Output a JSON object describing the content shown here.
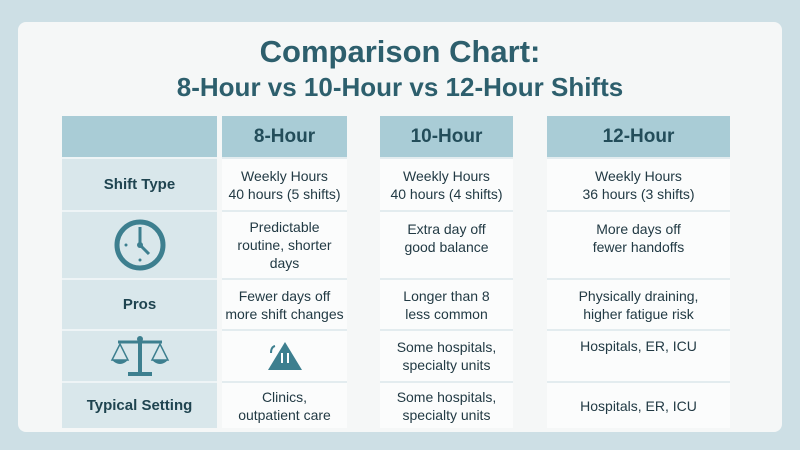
{
  "title_line1": "Comparison Chart:",
  "title_line2": "8-Hour vs 10-Hour vs 12-Hour Shifts",
  "row_labels": [
    "Shift Type",
    "",
    "Pros",
    "",
    "Typical Setting"
  ],
  "row_icons": [
    "",
    "clock-icon",
    "",
    "scales-icon",
    ""
  ],
  "columns": [
    {
      "header": "8-Hour",
      "cells": [
        "Weekly Hours\n40 hours (5 shifts)",
        "Predictable\nroutine, shorter\ndays",
        "Fewer days off\nmore shift changes",
        "",
        "Clinics,\noutpatient care"
      ],
      "icon_row4": "warning-icon"
    },
    {
      "header": "10-Hour",
      "cells": [
        "Weekly Hours\n40 hours (4 shifts)",
        "Extra day off\ngood balance",
        "Longer than 8\nless common",
        "Some hospitals,\nspecialty units",
        "Some hospitals,\nspecialty units"
      ]
    },
    {
      "header": "12-Hour",
      "cells": [
        "Weekly Hours\n36 hours (3 shifts)",
        "More days off\nfewer handoffs",
        "Physically draining,\nhigher fatigue risk",
        "Hospitals, ER, ICU",
        "Hospitals, ER, ICU"
      ]
    }
  ],
  "colors": {
    "accent": "#2d5f6d",
    "header_bg": "#a9ccd6",
    "label_bg": "#d9e7eb",
    "icon": "#3d7f8f"
  }
}
